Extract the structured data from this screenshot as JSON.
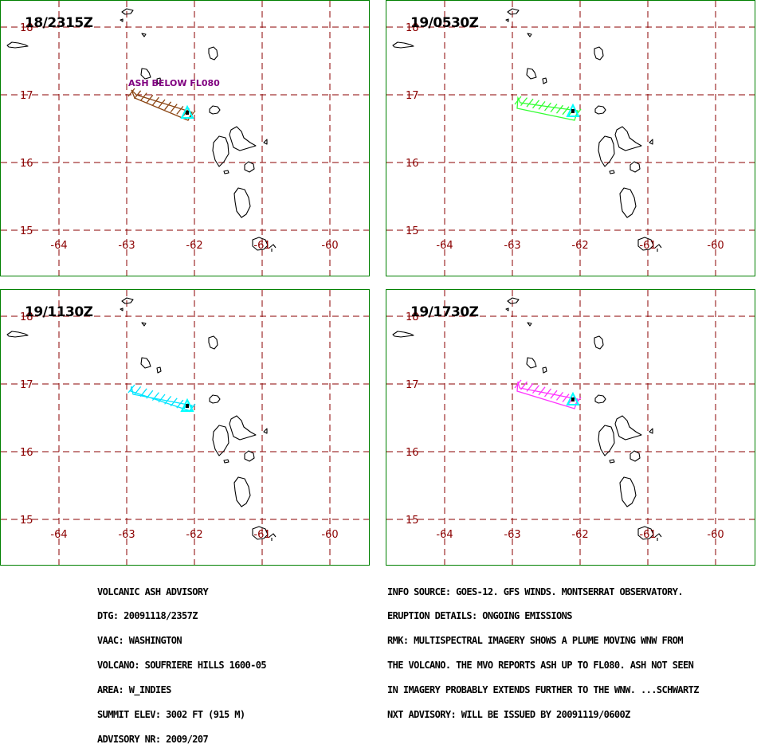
{
  "panels": [
    {
      "time": "18/2315Z",
      "ash_color": "#8b4513",
      "ash_label": "ASH BELOW FL080"
    },
    {
      "time": "19/0530Z",
      "ash_color": "#33ff33",
      "ash_label": ""
    },
    {
      "time": "19/1130Z",
      "ash_color": "#00e5ff",
      "ash_label": ""
    },
    {
      "time": "19/1730Z",
      "ash_color": "#ff33ff",
      "ash_label": ""
    }
  ],
  "lon_labels": [
    "-64",
    "-63",
    "-62",
    "-61",
    "-60"
  ],
  "lat_labels": [
    "18",
    "17",
    "16",
    "15"
  ],
  "colors": {
    "grid": "#8b0000",
    "frame": "#008000",
    "volcano": "#00ffff"
  },
  "advisory_left": [
    "VOLCANIC ASH ADVISORY",
    "DTG: 20091118/2357Z",
    "VAAC: WASHINGTON",
    "VOLCANO: SOUFRIERE HILLS 1600-05",
    "AREA: W_INDIES",
    "SUMMIT ELEV: 3002 FT (915 M)",
    "ADVISORY NR: 2009/207"
  ],
  "advisory_right": [
    "INFO SOURCE: GOES-12. GFS WINDS. MONTSERRAT OBSERVATORY.",
    "ERUPTION DETAILS: ONGOING EMISSIONS",
    "RMK: MULTISPECTRAL IMAGERY SHOWS A PLUME MOVING WNW FROM",
    "THE VOLCANO. THE MVO REPORTS ASH UP TO FL080. ASH NOT SEEN",
    "IN IMAGERY PROBABLY EXTENDS FURTHER TO THE WNW. ...SCHWARTZ",
    "NXT ADVISORY: WILL BE ISSUED BY 20091119/0600Z"
  ]
}
